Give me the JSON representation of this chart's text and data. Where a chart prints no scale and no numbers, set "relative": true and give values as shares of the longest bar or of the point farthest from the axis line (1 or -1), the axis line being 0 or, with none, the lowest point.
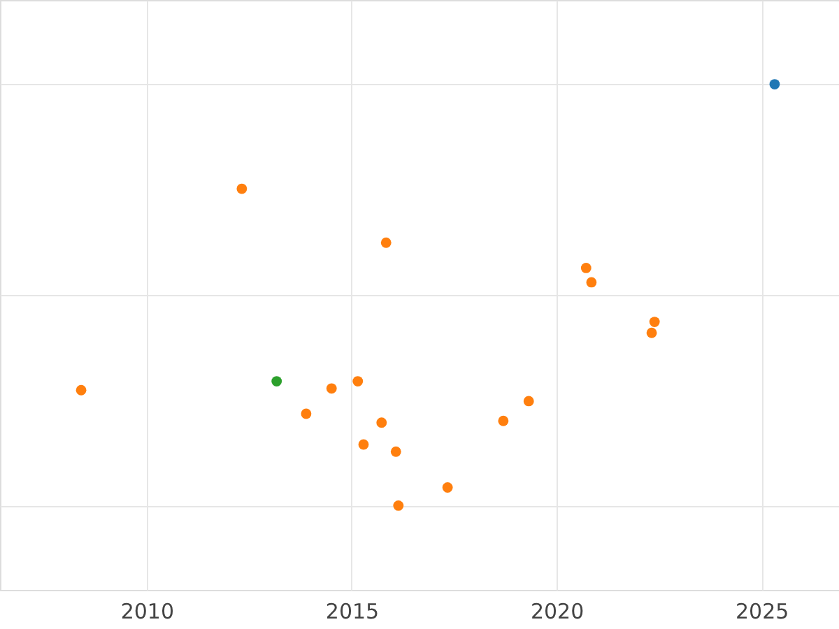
{
  "chart_data": {
    "type": "scatter",
    "relative": true,
    "grid": true,
    "tick_labels": "x",
    "xlim": [
      2006.42,
      2026.89
    ],
    "xticks": [
      2010,
      2015,
      2020,
      2025
    ],
    "series": [
      {
        "color": "#1f77b4",
        "x": [
          2025.32
        ],
        "values": [
          1
        ]
      },
      {
        "color": "#ff7f0e",
        "x": [
          2008.4,
          2012.32,
          2013.89,
          2014.51,
          2015.15,
          2015.29,
          2015.73,
          2015.84,
          2016.08,
          2016.14,
          2017.34,
          2018.7,
          2019.32,
          2020.72,
          2020.85,
          2022.32,
          2022.39
        ],
        "values": [
          0.274,
          0.752,
          0.218,
          0.278,
          0.295,
          0.145,
          0.197,
          0.624,
          0.128,
          0,
          0.043,
          0.201,
          0.248,
          0.564,
          0.53,
          0.41,
          0.436
        ]
      },
      {
        "color": "#2ca02c",
        "x": [
          2013.17
        ],
        "values": [
          0.295
        ]
      }
    ]
  }
}
